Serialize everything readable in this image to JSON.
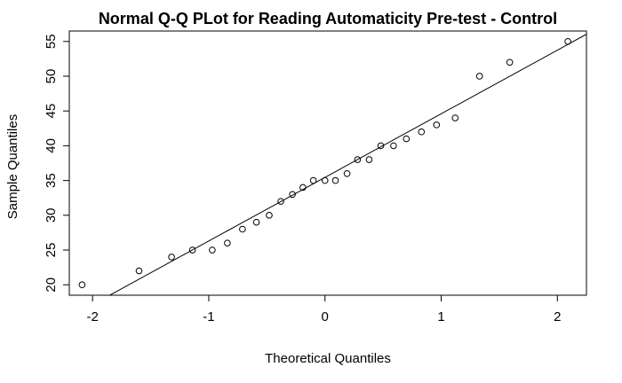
{
  "chart_data": {
    "type": "scatter",
    "title": "Normal Q-Q PLot for Reading Automaticity Pre-test - Control",
    "xlabel": "Theoretical Quantiles",
    "ylabel": "Sample Quantiles",
    "xlim": [
      -2.2,
      2.25
    ],
    "ylim": [
      18.5,
      56.5
    ],
    "x_ticks": [
      -2,
      -1,
      0,
      1,
      2
    ],
    "x_tick_labels": [
      "-2",
      "-1",
      "0",
      "1",
      "2"
    ],
    "y_ticks": [
      20,
      25,
      30,
      35,
      40,
      45,
      50,
      55
    ],
    "y_tick_labels": [
      "20",
      "25",
      "30",
      "35",
      "40",
      "45",
      "50",
      "55"
    ],
    "grid": false,
    "marker": "open-circle",
    "points": [
      {
        "x": -2.09,
        "y": 20
      },
      {
        "x": -1.6,
        "y": 22
      },
      {
        "x": -1.32,
        "y": 24
      },
      {
        "x": -1.14,
        "y": 25
      },
      {
        "x": -0.97,
        "y": 25
      },
      {
        "x": -0.84,
        "y": 26
      },
      {
        "x": -0.71,
        "y": 28
      },
      {
        "x": -0.59,
        "y": 29
      },
      {
        "x": -0.48,
        "y": 30
      },
      {
        "x": -0.38,
        "y": 32
      },
      {
        "x": -0.28,
        "y": 33
      },
      {
        "x": -0.19,
        "y": 34
      },
      {
        "x": -0.1,
        "y": 35
      },
      {
        "x": 0.0,
        "y": 35
      },
      {
        "x": 0.09,
        "y": 35
      },
      {
        "x": 0.19,
        "y": 36
      },
      {
        "x": 0.28,
        "y": 38
      },
      {
        "x": 0.38,
        "y": 38
      },
      {
        "x": 0.48,
        "y": 40
      },
      {
        "x": 0.59,
        "y": 40
      },
      {
        "x": 0.7,
        "y": 41
      },
      {
        "x": 0.83,
        "y": 42
      },
      {
        "x": 0.96,
        "y": 43
      },
      {
        "x": 1.12,
        "y": 44
      },
      {
        "x": 1.33,
        "y": 50
      },
      {
        "x": 1.59,
        "y": 52
      },
      {
        "x": 2.09,
        "y": 55
      }
    ],
    "reference_line": {
      "intercept": 35.45,
      "slope": 9.15
    }
  }
}
